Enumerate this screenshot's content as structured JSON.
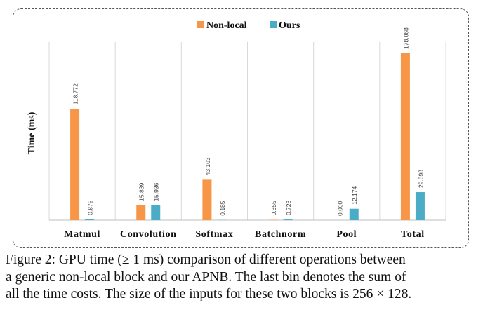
{
  "chart_data": {
    "type": "bar",
    "categories": [
      "Matmul",
      "Convolution",
      "Softmax",
      "Batchnorm",
      "Pool",
      "Total"
    ],
    "series": [
      {
        "name": "Non-local",
        "color": "#f79646",
        "values": [
          118.772,
          15.839,
          43.103,
          0.355,
          0.0,
          178.068
        ],
        "labels": [
          "118.772",
          "15.839",
          "43.103",
          "0.355",
          "0.000",
          "178.068"
        ]
      },
      {
        "name": "Ours",
        "color": "#4bacc6",
        "values": [
          0.875,
          15.936,
          0.185,
          0.728,
          12.174,
          29.898
        ],
        "labels": [
          "0.875",
          "15.936",
          "0.185",
          "0.728",
          "12.174",
          "29.898"
        ]
      }
    ],
    "ylabel": "Time (ms)",
    "xlabel": "",
    "ylim": [
      0,
      190
    ],
    "legend_position": "top-center",
    "grid": false
  },
  "caption": {
    "line1": "Figure 2: GPU time (≥ 1 ms) comparison of different operations between",
    "line2": "a generic non-local block and our APNB. The last bin denotes the sum of",
    "line3": "all the time costs. The size of the inputs for these two blocks is 256 × 128."
  }
}
